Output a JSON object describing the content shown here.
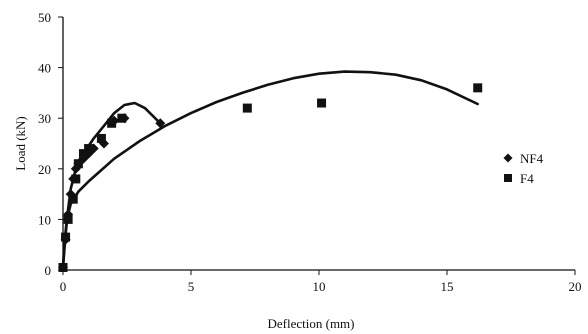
{
  "chart_data": {
    "type": "scatter",
    "title": "",
    "xlabel": "Deflection (mm)",
    "ylabel": "Load (kN)",
    "xlim": [
      0,
      20
    ],
    "ylim": [
      0,
      50
    ],
    "xticks": [
      0,
      5,
      10,
      15,
      20
    ],
    "yticks": [
      0,
      10,
      20,
      30,
      40,
      50
    ],
    "grid": false,
    "legend_position": "right",
    "series": [
      {
        "name": "NF4",
        "marker": "diamond",
        "color": "#111111",
        "points": [
          [
            0.0,
            0.5
          ],
          [
            0.1,
            6
          ],
          [
            0.2,
            11
          ],
          [
            0.3,
            15
          ],
          [
            0.4,
            18
          ],
          [
            0.5,
            20
          ],
          [
            0.6,
            21
          ],
          [
            0.8,
            22
          ],
          [
            1.0,
            23
          ],
          [
            1.2,
            24
          ],
          [
            1.6,
            25
          ],
          [
            2.0,
            29.5
          ],
          [
            2.4,
            30
          ],
          [
            3.8,
            29
          ]
        ],
        "fit_curve": [
          [
            0.0,
            0.5
          ],
          [
            0.1,
            7
          ],
          [
            0.2,
            12
          ],
          [
            0.3,
            16
          ],
          [
            0.5,
            20
          ],
          [
            0.8,
            23
          ],
          [
            1.2,
            26
          ],
          [
            1.6,
            28.5
          ],
          [
            2.0,
            31
          ],
          [
            2.4,
            32.6
          ],
          [
            2.8,
            33
          ],
          [
            3.2,
            32
          ],
          [
            3.5,
            30.5
          ],
          [
            3.8,
            29
          ]
        ]
      },
      {
        "name": "F4",
        "marker": "square",
        "color": "#111111",
        "points": [
          [
            0.0,
            0.5
          ],
          [
            0.1,
            6.5
          ],
          [
            0.2,
            10
          ],
          [
            0.4,
            14
          ],
          [
            0.5,
            18
          ],
          [
            0.6,
            21
          ],
          [
            0.8,
            23
          ],
          [
            1.0,
            24
          ],
          [
            1.5,
            26
          ],
          [
            1.9,
            29
          ],
          [
            2.3,
            30
          ],
          [
            7.2,
            32
          ],
          [
            10.1,
            33
          ],
          [
            16.2,
            36
          ]
        ],
        "fit_curve": [
          [
            0.0,
            0.5
          ],
          [
            0.05,
            5
          ],
          [
            0.15,
            10
          ],
          [
            0.3,
            13
          ],
          [
            0.6,
            15.5
          ],
          [
            1.0,
            17.5
          ],
          [
            2.0,
            22
          ],
          [
            3.0,
            25.5
          ],
          [
            4.0,
            28.5
          ],
          [
            5.0,
            31
          ],
          [
            6.0,
            33.2
          ],
          [
            7.0,
            35
          ],
          [
            8.0,
            36.6
          ],
          [
            9.0,
            37.9
          ],
          [
            10.0,
            38.8
          ],
          [
            11.0,
            39.2
          ],
          [
            12.0,
            39.1
          ],
          [
            13.0,
            38.6
          ],
          [
            14.0,
            37.5
          ],
          [
            15.0,
            35.7
          ],
          [
            16.2,
            32.8
          ]
        ]
      }
    ],
    "legend": [
      "NF4",
      "F4"
    ]
  }
}
